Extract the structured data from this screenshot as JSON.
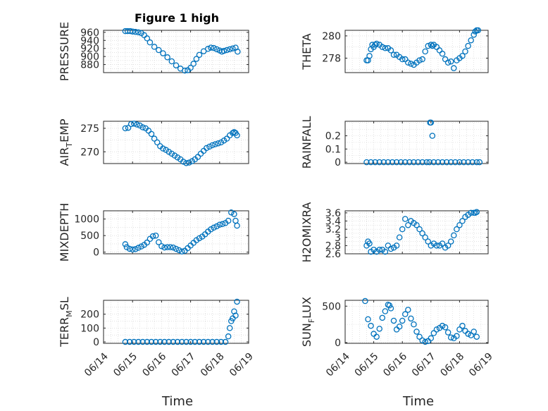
{
  "figure": {
    "title": "Figure 1 high",
    "xlabel_left": "Time",
    "xlabel_right": "Time"
  },
  "style": {
    "marker_color": "#0072BD",
    "axes_color": "#262626",
    "grid_color": "#d0d0d0"
  },
  "chart_data": [
    {
      "type": "scatter",
      "ylabel": "PRESSURE",
      "xlim": [
        0,
        5
      ],
      "ylim": [
        860,
        965
      ],
      "yticks": [
        880,
        900,
        920,
        940,
        960
      ],
      "x": [
        0.75,
        0.83,
        0.92,
        1.0,
        1.1,
        1.2,
        1.3,
        1.4,
        1.5,
        1.6,
        1.75,
        1.9,
        2.05,
        2.2,
        2.35,
        2.5,
        2.65,
        2.8,
        2.9,
        3.0,
        3.1,
        3.2,
        3.3,
        3.45,
        3.6,
        3.7,
        3.8,
        3.9,
        4.0,
        4.08,
        4.15,
        4.25,
        4.35,
        4.45,
        4.55,
        4.62
      ],
      "y": [
        963,
        963,
        963,
        962,
        961,
        960,
        958,
        953,
        945,
        935,
        924,
        916,
        908,
        898,
        888,
        878,
        870,
        865,
        866,
        872,
        882,
        894,
        904,
        913,
        919,
        922,
        921,
        918,
        915,
        912,
        914,
        916,
        918,
        920,
        922,
        912
      ]
    },
    {
      "type": "scatter",
      "ylabel": "THETA",
      "xlim": [
        0,
        5
      ],
      "ylim": [
        276.7,
        280.5
      ],
      "yticks": [
        278,
        280
      ],
      "x": [
        0.75,
        0.8,
        0.85,
        0.9,
        0.95,
        1.0,
        1.05,
        1.1,
        1.2,
        1.3,
        1.4,
        1.5,
        1.6,
        1.7,
        1.8,
        1.9,
        2.0,
        2.1,
        2.2,
        2.3,
        2.4,
        2.5,
        2.6,
        2.7,
        2.8,
        2.9,
        3.0,
        3.05,
        3.1,
        3.2,
        3.3,
        3.4,
        3.5,
        3.6,
        3.7,
        3.8,
        3.9,
        4.0,
        4.1,
        4.2,
        4.3,
        4.4,
        4.5,
        4.55,
        4.6,
        4.65
      ],
      "y": [
        277.8,
        277.8,
        278.2,
        278.8,
        279.2,
        279.0,
        279.2,
        279.3,
        279.2,
        279.0,
        278.9,
        278.9,
        278.7,
        278.3,
        278.3,
        278.1,
        277.9,
        277.9,
        277.6,
        277.5,
        277.4,
        277.6,
        277.8,
        277.9,
        278.6,
        279.1,
        279.2,
        279.1,
        279.2,
        279.0,
        278.7,
        278.4,
        277.9,
        277.6,
        277.7,
        277.1,
        277.8,
        278.0,
        278.2,
        278.6,
        279.1,
        279.6,
        280.1,
        280.4,
        280.5,
        280.5
      ]
    },
    {
      "type": "scatter",
      "ylabel": "AIR_TEMP",
      "xlim": [
        0,
        5
      ],
      "ylim": [
        267.5,
        276.5
      ],
      "yticks": [
        270,
        275
      ],
      "x": [
        0.75,
        0.85,
        0.95,
        1.05,
        1.15,
        1.25,
        1.35,
        1.45,
        1.55,
        1.65,
        1.75,
        1.85,
        1.95,
        2.05,
        2.15,
        2.25,
        2.35,
        2.45,
        2.55,
        2.65,
        2.75,
        2.85,
        2.95,
        3.05,
        3.15,
        3.25,
        3.35,
        3.45,
        3.55,
        3.65,
        3.75,
        3.85,
        3.95,
        4.05,
        4.15,
        4.25,
        4.35,
        4.45,
        4.5,
        4.55,
        4.6
      ],
      "y": [
        275,
        275.1,
        275.9,
        276.0,
        275.8,
        275.6,
        275.2,
        275.0,
        274.5,
        273.8,
        272.8,
        272.0,
        271.2,
        270.7,
        270.4,
        270.0,
        269.6,
        269.2,
        268.8,
        268.4,
        267.9,
        267.6,
        267.7,
        268.0,
        268.4,
        268.9,
        269.6,
        270.2,
        270.8,
        271.1,
        271.4,
        271.6,
        271.8,
        272.0,
        272.4,
        272.8,
        273.5,
        274.0,
        274.2,
        274.0,
        273.5
      ]
    },
    {
      "type": "scatter",
      "ylabel": "RAINFALL",
      "xlim": [
        0,
        5
      ],
      "ylim": [
        -0.01,
        0.31
      ],
      "yticks": [
        0,
        0.1,
        0.2
      ],
      "x": [
        0.75,
        0.9,
        1.05,
        1.2,
        1.35,
        1.5,
        1.65,
        1.8,
        1.95,
        2.1,
        2.25,
        2.4,
        2.55,
        2.7,
        2.85,
        2.95,
        2.97,
        3.0,
        3.05,
        3.1,
        3.25,
        3.4,
        3.55,
        3.7,
        3.85,
        4.0,
        4.15,
        4.3,
        4.45,
        4.6,
        4.7
      ],
      "y": [
        0,
        0,
        0,
        0,
        0,
        0,
        0,
        0,
        0,
        0,
        0,
        0,
        0,
        0,
        0,
        0,
        0.3,
        0.3,
        0.2,
        0,
        0,
        0,
        0,
        0,
        0,
        0,
        0,
        0,
        0,
        0,
        0
      ]
    },
    {
      "type": "scatter",
      "ylabel": "MIXDEPTH",
      "xlim": [
        0,
        5
      ],
      "ylim": [
        -50,
        1250
      ],
      "yticks": [
        0,
        500,
        1000
      ],
      "x": [
        0.75,
        0.8,
        0.9,
        1.0,
        1.1,
        1.2,
        1.3,
        1.4,
        1.5,
        1.6,
        1.7,
        1.8,
        1.9,
        2.0,
        2.1,
        2.2,
        2.3,
        2.4,
        2.5,
        2.6,
        2.7,
        2.8,
        2.9,
        3.0,
        3.1,
        3.2,
        3.3,
        3.4,
        3.5,
        3.6,
        3.7,
        3.8,
        3.9,
        4.0,
        4.1,
        4.2,
        4.3,
        4.4,
        4.5,
        4.55,
        4.6
      ],
      "y": [
        240,
        150,
        100,
        80,
        90,
        130,
        170,
        220,
        290,
        400,
        480,
        500,
        300,
        180,
        140,
        150,
        150,
        140,
        100,
        60,
        20,
        40,
        120,
        200,
        280,
        360,
        420,
        470,
        540,
        620,
        690,
        740,
        780,
        830,
        850,
        880,
        950,
        1200,
        1150,
        950,
        800
      ]
    },
    {
      "type": "scatter",
      "ylabel": "H2OMIXRA",
      "xlim": [
        0,
        5
      ],
      "ylim": [
        2.6,
        3.65
      ],
      "yticks": [
        2.6,
        2.8,
        3.0,
        3.2,
        3.4,
        3.6
      ],
      "x": [
        0.75,
        0.8,
        0.85,
        0.9,
        1.0,
        1.1,
        1.2,
        1.3,
        1.4,
        1.5,
        1.6,
        1.7,
        1.8,
        1.9,
        2.0,
        2.1,
        2.2,
        2.3,
        2.4,
        2.5,
        2.6,
        2.7,
        2.8,
        2.9,
        3.0,
        3.1,
        3.2,
        3.3,
        3.4,
        3.5,
        3.6,
        3.7,
        3.8,
        3.9,
        4.0,
        4.1,
        4.2,
        4.3,
        4.4,
        4.5,
        4.55,
        4.6
      ],
      "y": [
        2.8,
        2.9,
        2.85,
        2.65,
        2.7,
        2.65,
        2.7,
        2.7,
        2.65,
        2.8,
        2.72,
        2.75,
        2.8,
        3.0,
        3.2,
        3.45,
        3.3,
        3.4,
        3.35,
        3.3,
        3.2,
        3.1,
        3.0,
        2.9,
        2.8,
        2.85,
        2.8,
        2.8,
        2.85,
        2.75,
        2.8,
        2.9,
        3.05,
        3.2,
        3.3,
        3.4,
        3.5,
        3.55,
        3.6,
        3.6,
        3.6,
        3.62
      ]
    },
    {
      "type": "scatter",
      "ylabel": "TERR_MSL",
      "xlim": [
        0,
        5
      ],
      "ylim": [
        -10,
        300
      ],
      "yticks": [
        0,
        100,
        200
      ],
      "x": [
        0.75,
        0.9,
        1.05,
        1.2,
        1.35,
        1.5,
        1.65,
        1.8,
        1.95,
        2.1,
        2.25,
        2.4,
        2.55,
        2.7,
        2.85,
        3.0,
        3.15,
        3.3,
        3.45,
        3.6,
        3.75,
        3.9,
        4.05,
        4.2,
        4.3,
        4.35,
        4.4,
        4.45,
        4.5,
        4.55,
        4.6
      ],
      "y": [
        0,
        0,
        0,
        0,
        0,
        0,
        0,
        0,
        0,
        0,
        0,
        0,
        0,
        0,
        0,
        0,
        0,
        0,
        0,
        0,
        0,
        0,
        0,
        0,
        40,
        100,
        150,
        170,
        220,
        190,
        290
      ]
    },
    {
      "type": "scatter",
      "ylabel": "SUN_FLUX",
      "xlim": [
        0,
        5
      ],
      "ylim": [
        -10,
        580
      ],
      "yticks": [
        0,
        500
      ],
      "x": [
        0.7,
        0.8,
        0.9,
        1.0,
        1.1,
        1.2,
        1.3,
        1.4,
        1.5,
        1.55,
        1.6,
        1.7,
        1.8,
        1.9,
        2.0,
        2.1,
        2.2,
        2.3,
        2.4,
        2.5,
        2.6,
        2.7,
        2.8,
        2.9,
        3.0,
        3.1,
        3.2,
        3.3,
        3.4,
        3.5,
        3.6,
        3.7,
        3.8,
        3.9,
        4.0,
        4.1,
        4.2,
        4.3,
        4.4,
        4.5,
        4.6
      ],
      "y": [
        570,
        320,
        230,
        120,
        80,
        190,
        340,
        430,
        520,
        510,
        470,
        300,
        180,
        220,
        300,
        390,
        450,
        330,
        250,
        150,
        80,
        30,
        10,
        20,
        60,
        130,
        180,
        200,
        230,
        210,
        140,
        70,
        60,
        90,
        180,
        230,
        160,
        120,
        100,
        150,
        80
      ]
    }
  ],
  "x_tick_labels": [
    "06/14",
    "06/15",
    "06/16",
    "06/17",
    "06/18",
    "06/19"
  ]
}
